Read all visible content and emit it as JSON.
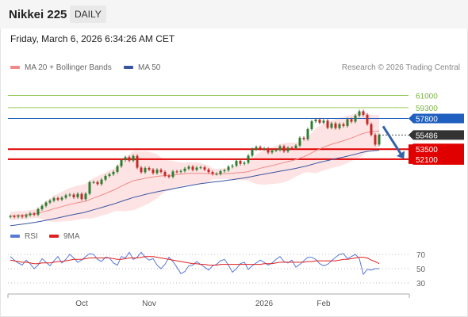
{
  "header": {
    "title": "Nikkei 225",
    "timeframe": "DAILY",
    "datetime": "Friday, March 6, 2026 6:34:26 AM CET"
  },
  "legend": [
    {
      "label": "MA 20 + Bollinger Bands",
      "color": "#f08a8a"
    },
    {
      "label": "MA 50",
      "color": "#3a55a0"
    }
  ],
  "credit": "Research © 2026 Trading Central",
  "rsi_legend": [
    {
      "label": "RSI",
      "color": "#5a79d6"
    },
    {
      "label": "9MA",
      "color": "#e02020"
    }
  ],
  "colors": {
    "up": "#2e7d32",
    "down": "#c62828",
    "resistance": "#9ccc65",
    "pivot": "#1f5fbf",
    "support": "#e00000",
    "current": "#333333",
    "band_fill": "#fde3e3"
  },
  "chart_data": [
    {
      "type": "candlestick",
      "title": "Nikkei 225",
      "x_labels": [
        "Oct",
        "Nov",
        "2026",
        "Feb"
      ],
      "ylim": [
        43000,
        63500
      ],
      "levels": [
        {
          "value": 61000,
          "label": "61000",
          "kind": "resistance"
        },
        {
          "value": 59300,
          "label": "59300",
          "kind": "resistance"
        },
        {
          "value": 57800,
          "label": "57800",
          "kind": "pivot"
        },
        {
          "value": 55486,
          "label": "55486",
          "kind": "current"
        },
        {
          "value": 53500,
          "label": "53500",
          "kind": "support"
        },
        {
          "value": 52100,
          "label": "52100",
          "kind": "support"
        }
      ],
      "last_price": 55486,
      "close_series": [
        44120,
        44050,
        44180,
        44050,
        44280,
        44500,
        44350,
        45120,
        45580,
        46040,
        46300,
        46650,
        46450,
        46720,
        47050,
        47150,
        46780,
        47250,
        46520,
        47280,
        48880,
        48900,
        48620,
        49240,
        49760,
        50000,
        50320,
        51120,
        51980,
        52380,
        51900,
        52560,
        50920,
        50280,
        50870,
        50640,
        50160,
        50620,
        50320,
        49790,
        49640,
        50380,
        50330,
        50450,
        50780,
        51050,
        50620,
        50920,
        50960,
        50650,
        50300,
        50040,
        50050,
        50420,
        50560,
        51050,
        51200,
        51880,
        51450,
        51620,
        52600,
        53500,
        53800,
        53520,
        53600,
        53040,
        53300,
        53400,
        53900,
        53200,
        53700,
        53650,
        54000,
        55100,
        54900,
        56300,
        57400,
        57650,
        57200,
        57500,
        56500,
        57100,
        56450,
        57000,
        56750,
        57700,
        57350,
        58200,
        58800,
        58300,
        57000,
        55500,
        54150,
        55486
      ],
      "ma20_series": [
        44180,
        44200,
        44230,
        44260,
        44320,
        44400,
        44460,
        44560,
        44690,
        44850,
        45000,
        45180,
        45320,
        45470,
        45630,
        45780,
        45890,
        46020,
        46110,
        46230,
        46460,
        46680,
        46870,
        47090,
        47300,
        47540,
        47760,
        48030,
        48330,
        48610,
        48830,
        49080,
        49200,
        49310,
        49440,
        49540,
        49610,
        49690,
        49760,
        49800,
        49810,
        49880,
        49940,
        50000,
        50060,
        50110,
        50110,
        50120,
        50120,
        50100,
        50080,
        50060,
        50040,
        50050,
        50060,
        50100,
        50130,
        50200,
        50230,
        50270,
        50370,
        50520,
        50680,
        50830,
        50970,
        51080,
        51210,
        51340,
        51500,
        51620,
        51760,
        51890,
        52040,
        52250,
        52440,
        52700,
        53000,
        53280,
        53540,
        53790,
        53980,
        54190,
        54350,
        54520,
        54680,
        54890,
        55060,
        55280,
        55510,
        55710,
        55850,
        55950,
        55960,
        56040
      ],
      "ma50_series": [
        42800,
        42870,
        42940,
        43010,
        43090,
        43170,
        43250,
        43340,
        43440,
        43550,
        43660,
        43780,
        43890,
        44010,
        44130,
        44260,
        44370,
        44490,
        44590,
        44710,
        44870,
        45030,
        45180,
        45340,
        45500,
        45670,
        45830,
        46010,
        46200,
        46390,
        46560,
        46740,
        46880,
        47020,
        47170,
        47300,
        47420,
        47540,
        47650,
        47750,
        47850,
        47960,
        48060,
        48170,
        48280,
        48390,
        48480,
        48580,
        48670,
        48750,
        48820,
        48890,
        48950,
        49020,
        49090,
        49170,
        49240,
        49330,
        49400,
        49480,
        49580,
        49690,
        49800,
        49910,
        50010,
        50110,
        50210,
        50310,
        50420,
        50510,
        50610,
        50710,
        50810,
        50940,
        51060,
        51200,
        51360,
        51510,
        51650,
        51790,
        51910,
        52040,
        52160,
        52280,
        52400,
        52530,
        52660,
        52800,
        52950,
        53080,
        53180,
        53260,
        53300,
        53360
      ]
    },
    {
      "type": "line",
      "title": "RSI",
      "ylim": [
        20,
        80
      ],
      "yticks": [
        70,
        50,
        30
      ],
      "series": [
        {
          "name": "RSI",
          "values": [
            67,
            62,
            58,
            55,
            62,
            57,
            50,
            55,
            64,
            59,
            54,
            61,
            67,
            58,
            63,
            70,
            65,
            59,
            62,
            67,
            71,
            70,
            63,
            60,
            66,
            65,
            58,
            55,
            67,
            65,
            73,
            63,
            66,
            73,
            66,
            62,
            64,
            55,
            50,
            56,
            66,
            60,
            52,
            43,
            46,
            54,
            55,
            60,
            56,
            52,
            48,
            54,
            56,
            61,
            63,
            55,
            45,
            50,
            57,
            59,
            49,
            54,
            58,
            62,
            59,
            55,
            58,
            63,
            67,
            60,
            58,
            62,
            52,
            56,
            61,
            66,
            66,
            63,
            57,
            54,
            56,
            61,
            66,
            70,
            71,
            64,
            67,
            70,
            64,
            42,
            49,
            48,
            50,
            50
          ]
        },
        {
          "name": "9MA",
          "values": [
            62,
            61,
            60,
            59,
            59,
            58,
            57,
            57,
            58,
            58,
            58,
            59,
            60,
            60,
            61,
            62,
            63,
            63,
            63,
            64,
            65,
            65,
            65,
            65,
            65,
            65,
            64,
            63,
            63,
            64,
            65,
            65,
            65,
            66,
            67,
            67,
            67,
            66,
            65,
            64,
            63,
            62,
            61,
            60,
            59,
            58,
            57,
            57,
            56,
            56,
            55,
            55,
            55,
            56,
            56,
            56,
            56,
            56,
            56,
            56,
            56,
            56,
            56,
            56,
            57,
            57,
            57,
            58,
            59,
            59,
            59,
            59,
            59,
            59,
            59,
            60,
            60,
            61,
            61,
            61,
            61,
            61,
            61,
            62,
            63,
            63,
            64,
            65,
            66,
            66,
            65,
            62,
            60,
            57
          ]
        }
      ]
    }
  ]
}
